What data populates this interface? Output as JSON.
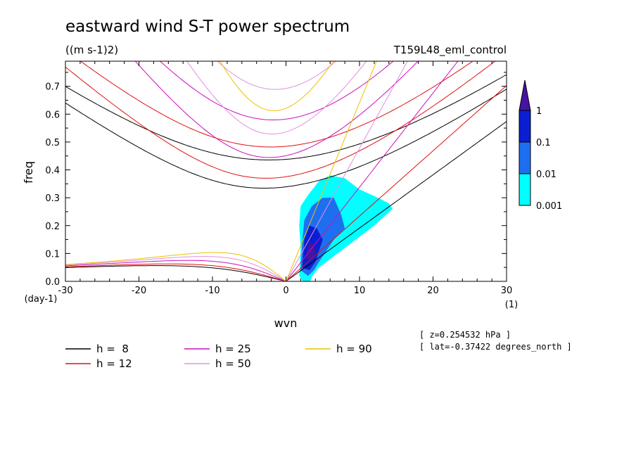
{
  "chart_data": {
    "type": "heatmap",
    "title": "eastward wind S-T power spectrum",
    "units": "((m s-1)2)",
    "run_label": "T159L48_eml_control",
    "xlabel": "wvn",
    "ylabel": "freq",
    "x_unit": "(1)",
    "y_unit": "(day-1)",
    "xlim": [
      -30,
      30
    ],
    "ylim": [
      0,
      0.79
    ],
    "xticks": [
      -30,
      -20,
      -10,
      0,
      10,
      20,
      30
    ],
    "xtick_labels": [
      "-30",
      "-20",
      "-10",
      "0",
      "10",
      "20",
      "30"
    ],
    "yticks": [
      0,
      0.1,
      0.2,
      0.3,
      0.4,
      0.5,
      0.6,
      0.7
    ],
    "ytick_labels": [
      "0.0",
      "0.1",
      "0.2",
      "0.3",
      "0.4",
      "0.5",
      "0.6",
      "0.7"
    ],
    "colorbar": {
      "levels": [
        0.001,
        0.01,
        0.1,
        1
      ],
      "labels": [
        "0.001",
        "0.01",
        "0.1",
        "1"
      ],
      "colors": [
        "#00ffff",
        "#1e6ff0",
        "#0a1ed2",
        "#4614a0"
      ]
    },
    "dispersion_curves": [
      {
        "h": 8,
        "label": "h =  8",
        "color": "#000000"
      },
      {
        "h": 12,
        "label": "h = 12",
        "color": "#e01010"
      },
      {
        "h": 25,
        "label": "h = 25",
        "color": "#cc10b8"
      },
      {
        "h": 50,
        "label": "h = 50",
        "color": "#e090e0"
      },
      {
        "h": 90,
        "label": "h = 90",
        "color": "#ecc000"
      }
    ],
    "power_regions": [
      {
        "level": 0.001,
        "points": [
          [
            1.8,
            0.02
          ],
          [
            2.0,
            0.12
          ],
          [
            1.8,
            0.2
          ],
          [
            2.0,
            0.27
          ],
          [
            3.0,
            0.31
          ],
          [
            4.5,
            0.36
          ],
          [
            6.0,
            0.38
          ],
          [
            8.0,
            0.37
          ],
          [
            10.0,
            0.33
          ],
          [
            12.5,
            0.3
          ],
          [
            14.0,
            0.28
          ],
          [
            14.5,
            0.26
          ],
          [
            12.0,
            0.2
          ],
          [
            10.0,
            0.16
          ],
          [
            8.0,
            0.12
          ],
          [
            6.0,
            0.08
          ],
          [
            4.5,
            0.05
          ],
          [
            3.6,
            0.02
          ],
          [
            3.3,
            0.0
          ],
          [
            2.3,
            0.0
          ]
        ]
      },
      {
        "level": 0.01,
        "points": [
          [
            2.0,
            0.04
          ],
          [
            2.2,
            0.14
          ],
          [
            2.5,
            0.22
          ],
          [
            3.5,
            0.27
          ],
          [
            5.0,
            0.3
          ],
          [
            6.5,
            0.3
          ],
          [
            7.5,
            0.24
          ],
          [
            8.0,
            0.19
          ],
          [
            6.5,
            0.15
          ],
          [
            5.5,
            0.11
          ],
          [
            4.5,
            0.07
          ],
          [
            3.8,
            0.04
          ],
          [
            3.0,
            0.02
          ]
        ]
      },
      {
        "level": 0.1,
        "points": [
          [
            2.2,
            0.05
          ],
          [
            2.5,
            0.15
          ],
          [
            3.2,
            0.2
          ],
          [
            4.2,
            0.19
          ],
          [
            5.0,
            0.15
          ],
          [
            4.5,
            0.11
          ],
          [
            4.0,
            0.07
          ],
          [
            3.2,
            0.04
          ]
        ]
      },
      {
        "level": 1,
        "points": [
          [
            2.7,
            0.08
          ],
          [
            3.0,
            0.13
          ],
          [
            3.6,
            0.14
          ],
          [
            4.0,
            0.11
          ],
          [
            3.6,
            0.08
          ]
        ]
      }
    ],
    "notes": [
      "[ z=0.254532 hPa ]",
      "[ lat=-0.37422 degrees_north ]"
    ]
  }
}
